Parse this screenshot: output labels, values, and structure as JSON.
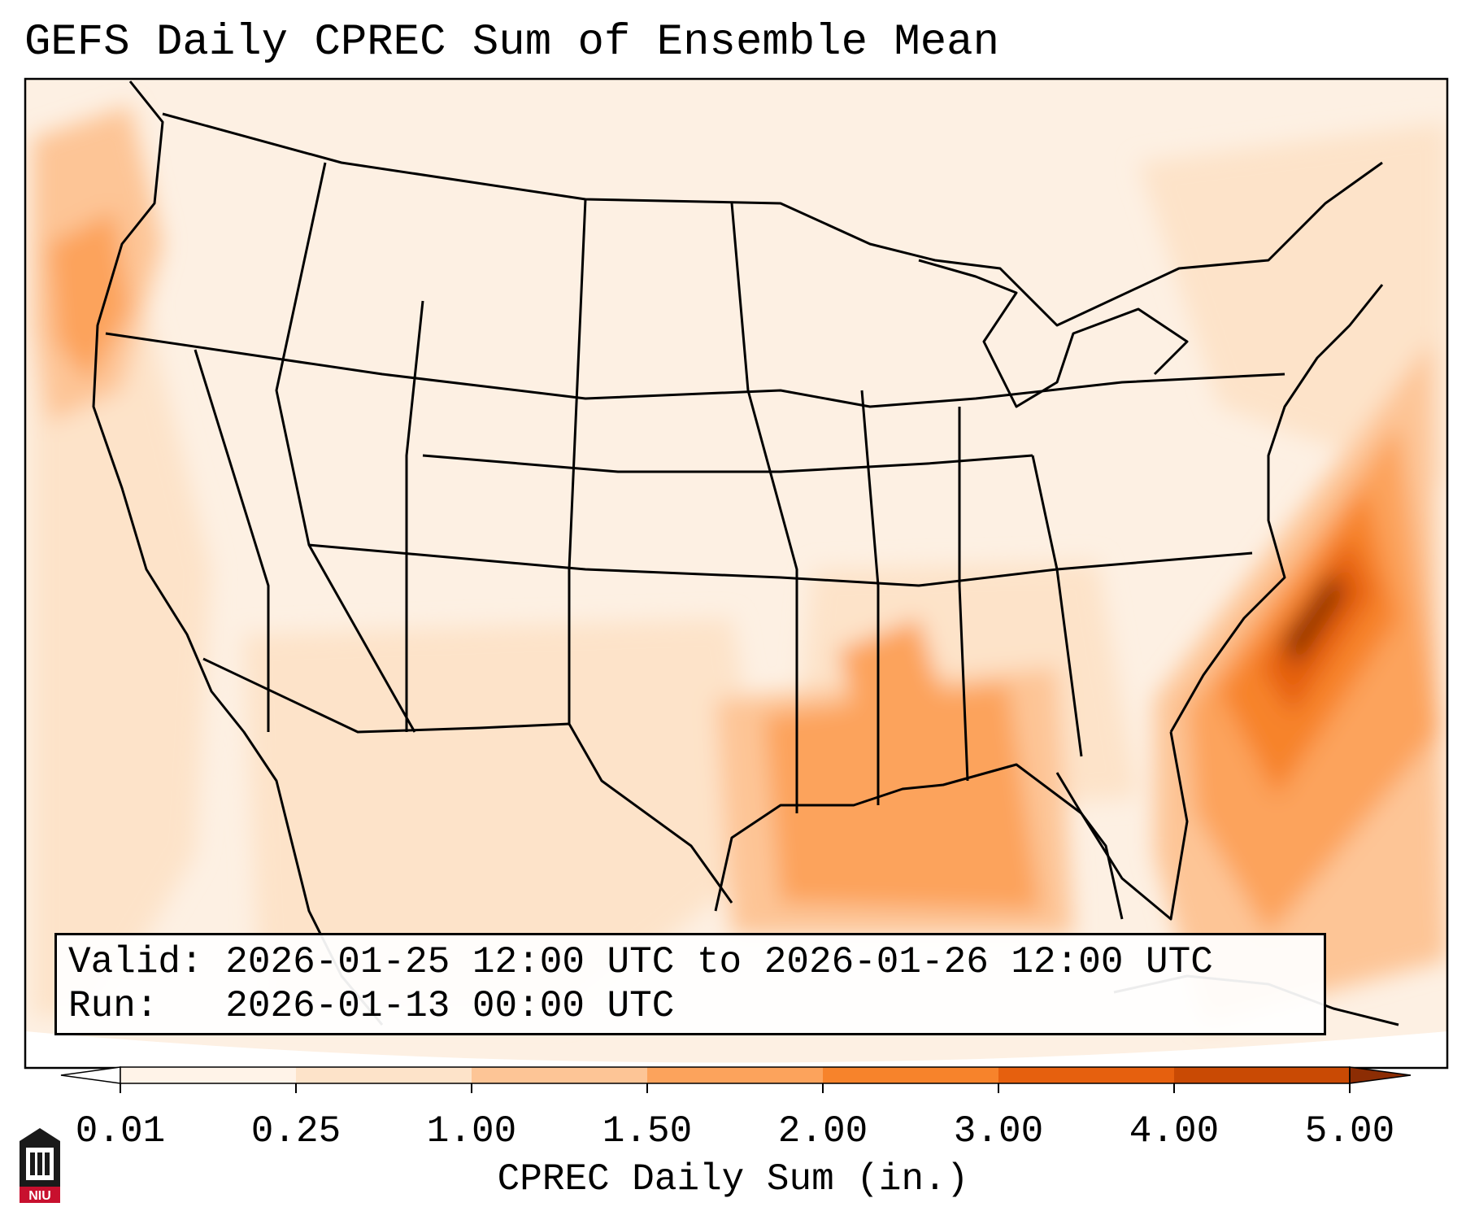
{
  "title": "GEFS Daily CPREC Sum of Ensemble Mean",
  "info": {
    "valid_label": "Valid:",
    "valid_value": "2026-01-25 12:00 UTC to 2026-01-26 12:00 UTC",
    "run_label": "Run:",
    "run_value": "2026-01-13 00:00 UTC"
  },
  "colorbar": {
    "label": "CPREC Daily Sum (in.)",
    "ticks": [
      "0.01",
      "0.25",
      "1.00",
      "1.50",
      "2.00",
      "3.00",
      "4.00",
      "5.00"
    ],
    "colors": [
      "#fff3e8",
      "#fde3c9",
      "#fdc596",
      "#fca35c",
      "#f7832b",
      "#e6600e",
      "#c94a04"
    ],
    "under_color": "#ffffff",
    "over_color": "#8c2d04",
    "extend": "both"
  },
  "map": {
    "region": "Contiguous United States",
    "projection": "conic",
    "max_shading": "#8c2d04",
    "boundaries": [
      "coastlines",
      "state-borders",
      "country-borders"
    ]
  },
  "logo": {
    "text": "NIU"
  }
}
